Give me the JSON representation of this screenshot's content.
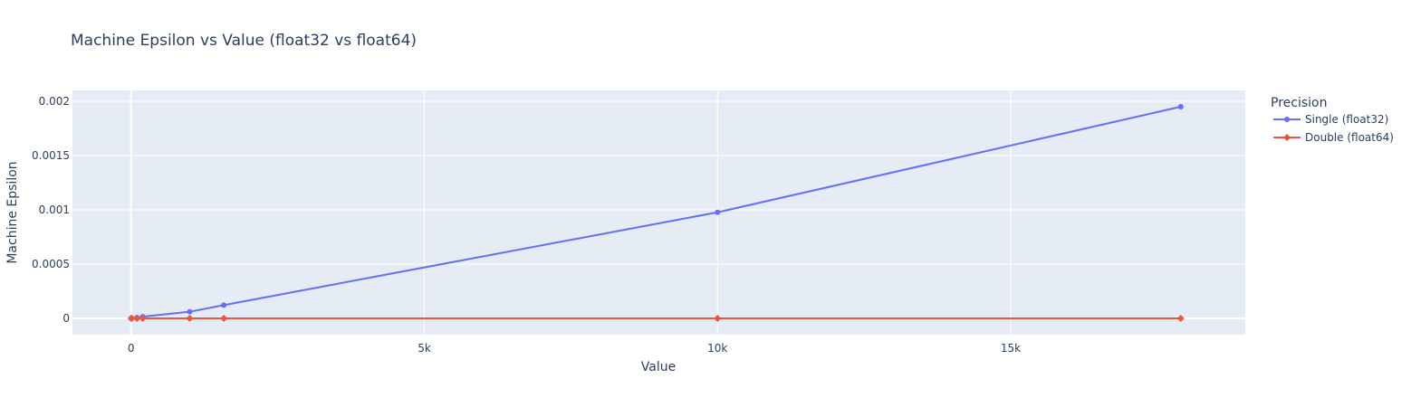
{
  "chart_data": {
    "type": "line",
    "title": "Machine Epsilon vs Value (float32 vs float64)",
    "xlabel": "Value",
    "ylabel": "Machine Epsilon",
    "xlim": [
      -1000,
      19000
    ],
    "ylim": [
      -0.00015,
      0.0021
    ],
    "x_ticks": [
      {
        "v": 0,
        "label": "0"
      },
      {
        "v": 5000,
        "label": "5k"
      },
      {
        "v": 10000,
        "label": "10k"
      },
      {
        "v": 15000,
        "label": "15k"
      }
    ],
    "y_ticks": [
      {
        "v": 0,
        "label": "0"
      },
      {
        "v": 0.0005,
        "label": "0.0005"
      },
      {
        "v": 0.001,
        "label": "0.001"
      },
      {
        "v": 0.0015,
        "label": "0.0015"
      },
      {
        "v": 0.002,
        "label": "0.002"
      }
    ],
    "grid": true,
    "legend_title": "Precision",
    "legend_position": "right",
    "series": [
      {
        "name": "Single (float32)",
        "color": "#636efa",
        "marker": "circle",
        "x": [
          1,
          10,
          100,
          200,
          1000,
          1580,
          10000,
          17900
        ],
        "y": [
          1.2e-07,
          9.5e-07,
          7.6e-06,
          1.53e-05,
          6.1e-05,
          0.000122,
          0.000977,
          0.00195
        ]
      },
      {
        "name": "Double (float64)",
        "color": "#ef553b",
        "marker": "diamond",
        "x": [
          1,
          10,
          100,
          200,
          1000,
          1580,
          10000,
          17900
        ],
        "y": [
          2.2e-16,
          1.8e-15,
          1.4e-14,
          2.8e-14,
          1.1e-13,
          2.3e-13,
          1.8e-12,
          3.6e-12
        ]
      }
    ]
  }
}
